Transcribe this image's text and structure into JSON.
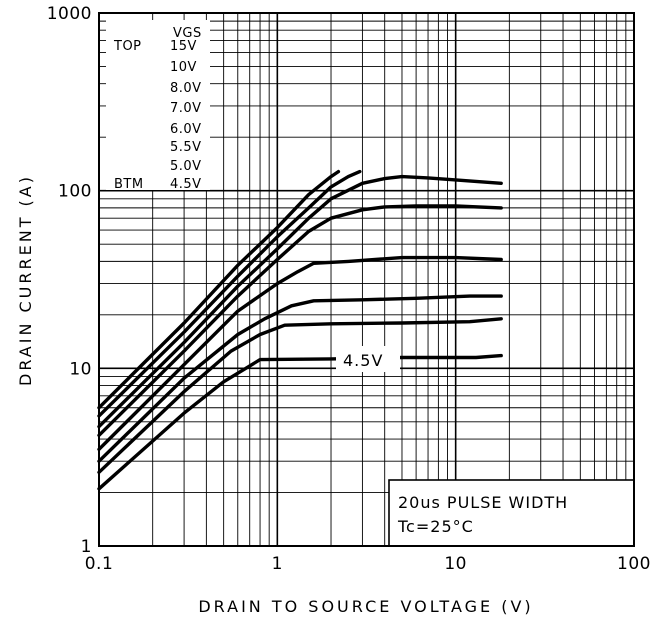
{
  "chart_data": {
    "type": "line",
    "xlabel": "DRAIN TO SOURCE VOLTAGE (V)",
    "ylabel": "DRAIN CURRENT (A)",
    "x_scale": "log",
    "y_scale": "log",
    "xlim": [
      0.1,
      100
    ],
    "ylim": [
      1,
      1000
    ],
    "x_ticks": [
      "0.1",
      "1",
      "10",
      "100"
    ],
    "y_ticks": [
      "1",
      "10",
      "100",
      "1000"
    ],
    "grid": true,
    "legend": {
      "header": "VGS",
      "top_label": "TOP",
      "bottom_label": "BTM",
      "entries": [
        "15V",
        "10V",
        "8.0V",
        "7.0V",
        "6.0V",
        "5.5V",
        "5.0V",
        "4.5V"
      ]
    },
    "curve_label": "4.5V",
    "note": [
      "20us PULSE WIDTH",
      "Tc=25°C"
    ],
    "series": [
      {
        "x": [
          0.1,
          0.3,
          0.6,
          1.0,
          1.5,
          2.0,
          2.2
        ],
        "y": [
          6.0,
          18,
          38,
          62,
          95,
          120,
          128
        ]
      },
      {
        "x": [
          0.1,
          0.3,
          0.6,
          1.0,
          1.5,
          2.0,
          2.5,
          2.9
        ],
        "y": [
          5.4,
          16,
          33,
          55,
          80,
          105,
          120,
          128
        ]
      },
      {
        "x": [
          0.1,
          0.3,
          0.6,
          1.0,
          1.5,
          2.0,
          3.0,
          4.0,
          5.0,
          7.0,
          10,
          18
        ],
        "y": [
          4.7,
          14,
          29,
          47,
          70,
          90,
          110,
          117,
          120,
          118,
          115,
          110
        ]
      },
      {
        "x": [
          0.1,
          0.3,
          0.6,
          1.0,
          1.5,
          2.0,
          3.0,
          4.0,
          6.0,
          10,
          18
        ],
        "y": [
          4.2,
          12.5,
          25.5,
          41,
          59,
          70,
          78,
          81,
          82,
          82,
          80
        ]
      },
      {
        "x": [
          0.1,
          0.3,
          0.6,
          1.0,
          1.3,
          1.6,
          2.5,
          5.0,
          10,
          18
        ],
        "y": [
          3.5,
          10.5,
          21,
          30,
          35,
          39,
          40,
          42,
          42,
          41
        ]
      },
      {
        "x": [
          0.1,
          0.3,
          0.6,
          0.85,
          1.2,
          1.6,
          3.0,
          6.0,
          12,
          18
        ],
        "y": [
          3.0,
          8.8,
          15.5,
          19,
          22.5,
          24,
          24.3,
          24.8,
          25.5,
          25.5
        ]
      },
      {
        "x": [
          0.1,
          0.3,
          0.55,
          0.8,
          1.1,
          2.0,
          5.0,
          12,
          18
        ],
        "y": [
          2.6,
          7.4,
          12.5,
          15.5,
          17.5,
          17.8,
          18,
          18.3,
          19
        ]
      },
      {
        "x": [
          0.1,
          0.3,
          0.5,
          0.8,
          2.0,
          5.0,
          13,
          18
        ],
        "y": [
          2.1,
          5.6,
          8.4,
          11.2,
          11.3,
          11.5,
          11.5,
          11.8
        ]
      }
    ]
  }
}
